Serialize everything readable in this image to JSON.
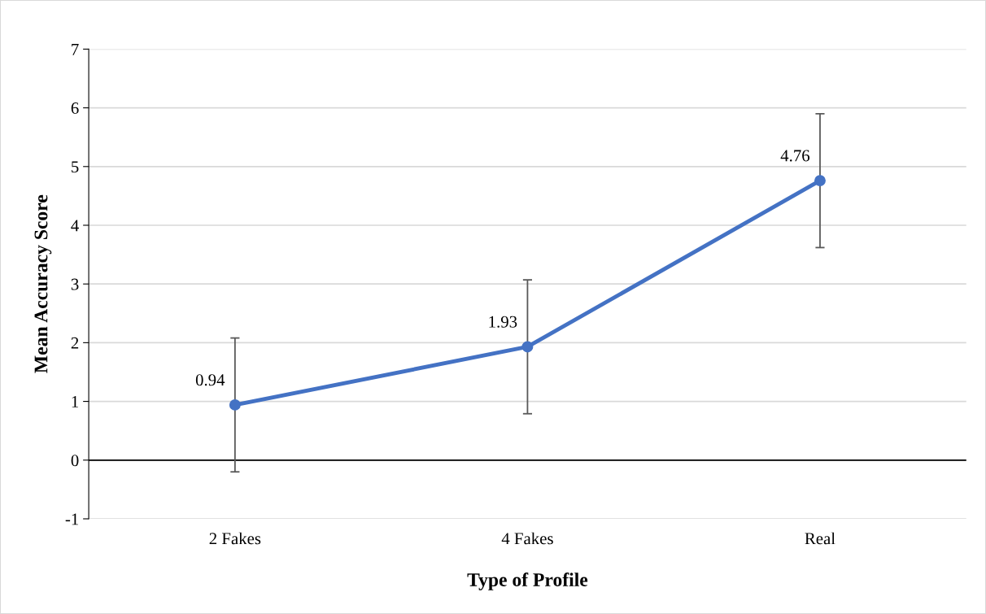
{
  "chart_data": {
    "type": "line",
    "xlabel": "Type of Profile",
    "ylabel": "Mean Accuracy Score",
    "categories": [
      "2 Fakes",
      "4 Fakes",
      "Real"
    ],
    "series": [
      {
        "color": "#4472c4",
        "values": [
          0.94,
          1.93,
          4.76
        ],
        "errors": [
          1.14,
          1.14,
          1.14
        ]
      }
    ],
    "data_labels": true,
    "ylim": [
      -1,
      7
    ],
    "yticks": [
      -1,
      0,
      1,
      2,
      3,
      4,
      5,
      6,
      7
    ],
    "ref_lines": [
      {
        "axis": "y",
        "value": 0,
        "color": "#000000"
      }
    ],
    "grid": "y",
    "marker": "circle",
    "line_style": "solid"
  }
}
